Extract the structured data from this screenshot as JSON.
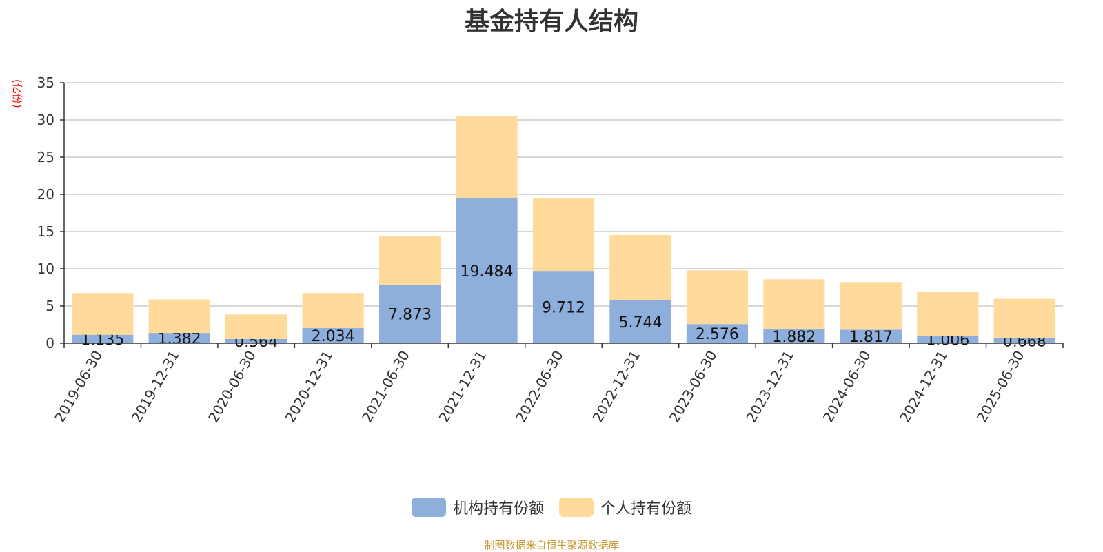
{
  "chart_data": {
    "type": "bar",
    "stacked": true,
    "title": "基金持有人结构",
    "unit_label": "(亿份)",
    "ylim": [
      0,
      35
    ],
    "yticks": [
      0,
      5,
      10,
      15,
      20,
      25,
      30,
      35
    ],
    "categories": [
      "2019-06-30",
      "2019-12-31",
      "2020-06-30",
      "2020-12-31",
      "2021-06-30",
      "2021-12-31",
      "2022-06-30",
      "2022-12-31",
      "2023-06-30",
      "2023-12-31",
      "2024-06-30",
      "2024-12-31",
      "2025-06-30"
    ],
    "series": [
      {
        "name": "机构持有份额",
        "color": "#8eaedb",
        "values": [
          1.135,
          1.382,
          0.564,
          2.034,
          7.873,
          19.484,
          9.712,
          5.744,
          2.576,
          1.882,
          1.817,
          1.006,
          0.668
        ],
        "labels": [
          "1.135",
          "1.382",
          "0.564",
          "2.034",
          "7.873",
          "19.484",
          "9.712",
          "5.744",
          "2.576",
          "1.882",
          "1.817",
          "1.006",
          "0.668"
        ]
      },
      {
        "name": "个人持有份额",
        "color": "#ffda9a",
        "values": [
          5.6,
          4.5,
          3.3,
          4.7,
          6.5,
          11.0,
          9.8,
          8.8,
          7.2,
          6.7,
          6.4,
          5.9,
          5.3
        ]
      }
    ],
    "grid": true,
    "legend": "bottom-center"
  },
  "footer": {
    "source": "制图数据来自恒生聚源数据库"
  }
}
